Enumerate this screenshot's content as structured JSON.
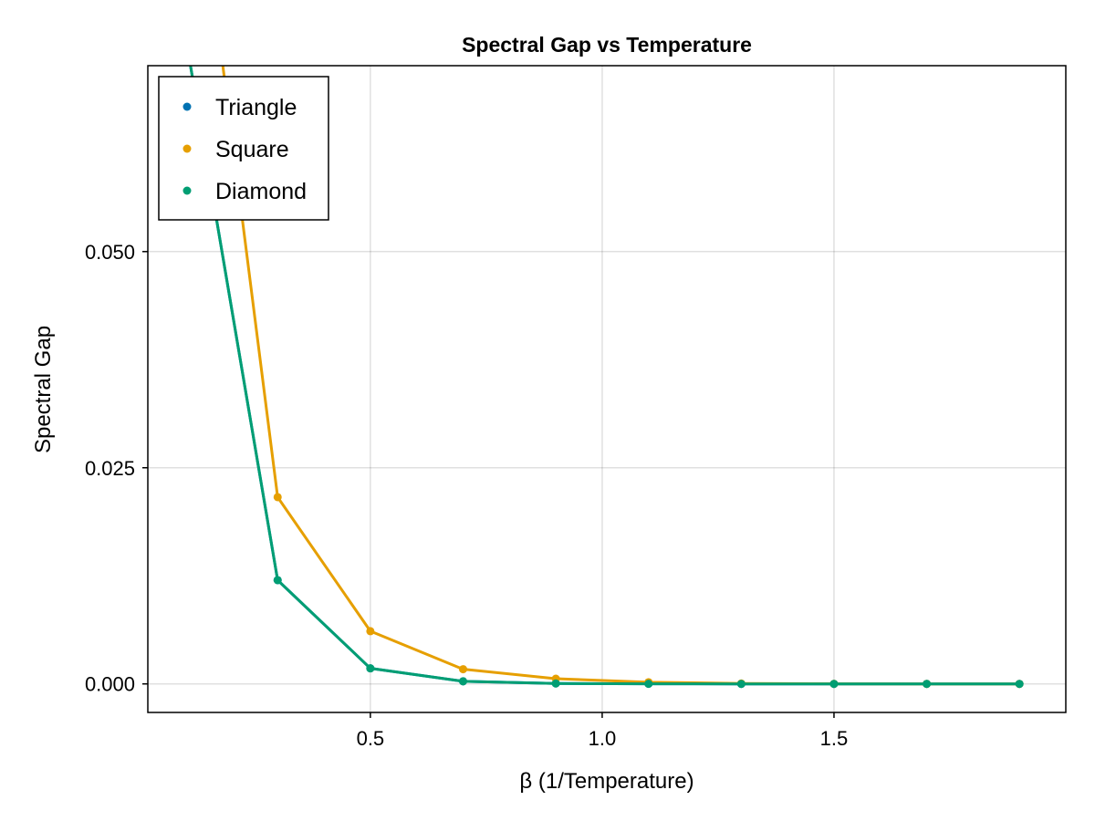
{
  "chart_data": {
    "type": "line",
    "title": "Spectral Gap vs Temperature",
    "xlabel": "β (1/Temperature)",
    "ylabel": "Spectral Gap",
    "xlim": [
      0.02,
      2.0
    ],
    "ylim": [
      -0.0033,
      0.0715
    ],
    "xticks": [
      0.5,
      1.0,
      1.5
    ],
    "xtick_labels": [
      "0.5",
      "1.0",
      "1.5"
    ],
    "yticks": [
      0.0,
      0.025,
      0.05
    ],
    "ytick_labels": [
      "0.000",
      "0.025",
      "0.050"
    ],
    "grid": true,
    "legend_position": "top-left",
    "x": [
      0.1,
      0.3,
      0.5,
      0.7,
      0.9,
      1.1,
      1.3,
      1.5,
      1.7,
      1.9
    ],
    "series": [
      {
        "name": "Triangle",
        "color": "#0072b2",
        "values": [
          0.0753,
          0.012,
          0.0018,
          0.0003,
          5e-05,
          1e-05,
          0.0,
          0.0,
          0.0,
          0.0
        ]
      },
      {
        "name": "Square",
        "color": "#e69f00",
        "values": [
          0.106,
          0.0216,
          0.0061,
          0.0017,
          0.0006,
          0.0002,
          5e-05,
          1e-05,
          0.0,
          0.0
        ]
      },
      {
        "name": "Diamond",
        "color": "#009e73",
        "values": [
          0.0753,
          0.012,
          0.0018,
          0.0003,
          5e-05,
          1e-05,
          0.0,
          0.0,
          0.0,
          0.0
        ]
      }
    ]
  }
}
